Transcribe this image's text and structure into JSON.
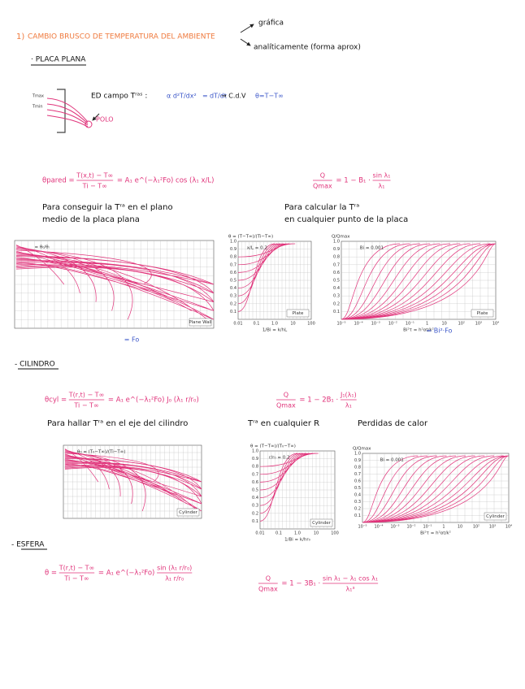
{
  "header": {
    "number": "1)",
    "title": "CAMBIO BRUSCO DE TEMPERATURA DEL AMBIENTE",
    "options": [
      "gráfica",
      "analíticamente (forma aprox)"
    ]
  },
  "plate": {
    "heading": "· PLACA PLANA",
    "diagram": {
      "hot": "Tmax",
      "cold": "Tmin",
      "pole": "POLO"
    },
    "equation": {
      "label": "ED campo Tʳᵃˢ :",
      "lhs": "α d²T/dx²",
      "eq": "=",
      "rhs": "dT/dt",
      "arrow": "→ C.d.V",
      "substitution": "θ=T−T∞"
    },
    "center_formula": [
      "θpared = ",
      {
        "num": "T(x,t) − T∞",
        "den": "Ti − T∞"
      },
      " = A₁ e^(−λ₁²Fo) cos (λ₁ x/L)"
    ],
    "heat_formula": [
      {
        "num": "Q",
        "den": "Qmax"
      },
      " = 1 − B₁ · ",
      {
        "num": "sin λ₁",
        "den": "λ₁"
      }
    ],
    "note_left": [
      "Para conseguir la Tʳᵃ en el plano",
      "medio de la placa plana"
    ],
    "note_right": [
      "Para calcular la Tʳᵃ",
      "en cualquier punto de la placa"
    ],
    "charts": [
      {
        "caption": "Plane Wall",
        "annotation": "= θ₀/θᵢ",
        "xnote": "= Fo"
      },
      {
        "ylabel": "θ = (T−T∞)/(Ti−T∞)",
        "annotation": "x/L = 0.2",
        "caption": "Plate",
        "xlabel": "1/Bi = k/hL",
        "xticks": [
          "0.01",
          "0.1",
          "1.0",
          "10",
          "100"
        ],
        "yticks": [
          "0.1",
          "0.2",
          "0.3",
          "0.4",
          "0.5",
          "0.6",
          "0.7",
          "0.8",
          "0.9",
          "1.0"
        ]
      },
      {
        "ylabel": "Q/Qmax",
        "annotation": "Bi = 0.001",
        "caption": "Plate",
        "xlabel": "Bi²τ = h²αt/k²",
        "xnote": "= Bi²·Fo",
        "xticks": [
          "10⁻⁵",
          "10⁻⁴",
          "10⁻³",
          "10⁻²",
          "10⁻¹",
          "1",
          "10",
          "10²",
          "10³",
          "10⁴"
        ],
        "yticks": [
          "0.1",
          "0.2",
          "0.3",
          "0.4",
          "0.5",
          "0.6",
          "0.7",
          "0.8",
          "0.9",
          "1.0"
        ]
      }
    ]
  },
  "cylinder": {
    "heading": "- CILINDRO",
    "center_formula": [
      "θcyl = ",
      {
        "num": "T(r,t) − T∞",
        "den": "Ti − T∞"
      },
      " = A₁ e^(−λ₁²Fo) J₀ (λ₁ r/r₀)"
    ],
    "heat_formula": [
      {
        "num": "Q",
        "den": "Qmax"
      },
      " = 1 − 2B₁ · ",
      {
        "num": "J₁(λ₁)",
        "den": "λ₁"
      }
    ],
    "notes": [
      "Para hallar Tʳᵃ en el eje del cilindro",
      "Tʳᵃ en cualquier R",
      "Perdidas de calor"
    ],
    "charts": [
      {
        "caption": "Cylinder",
        "annotation": "θ₀ = (T₀−T∞)/(Ti−T∞)"
      },
      {
        "ylabel": "θ = (T−T∞)/(T₀−T∞)",
        "annotation": "r/r₀ = 0.2",
        "caption": "Cylinder",
        "xlabel": "1/Bi = k/hr₀",
        "xticks": [
          "0.01",
          "0.1",
          "1.0",
          "10",
          "100"
        ],
        "yticks": [
          "0.1",
          "0.2",
          "0.3",
          "0.4",
          "0.5",
          "0.6",
          "0.7",
          "0.8",
          "0.9",
          "1.0"
        ]
      },
      {
        "ylabel": "Q/Qmax",
        "annotation": "Bi = 0.001",
        "caption": "Cylinder",
        "xlabel": "Bi²τ = h²αt/k²",
        "xticks": [
          "10⁻⁵",
          "10⁻⁴",
          "10⁻³",
          "10⁻²",
          "10⁻¹",
          "1",
          "10",
          "10²",
          "10³",
          "10⁴"
        ],
        "yticks": [
          "0.1",
          "0.2",
          "0.3",
          "0.4",
          "0.5",
          "0.6",
          "0.7",
          "0.8",
          "0.9",
          "1.0"
        ]
      }
    ]
  },
  "sphere": {
    "heading": "- ESFERA",
    "center_formula": [
      "θ = ",
      {
        "num": "T(r,t) − T∞",
        "den": "Ti − T∞"
      },
      " = A₁ e^(−λ₁²Fo) ",
      {
        "num": "sin (λ₁ r/r₀)",
        "den": "λ₁ r/r₀"
      }
    ],
    "heat_formula": [
      {
        "num": "Q",
        "den": "Qmax"
      },
      " = 1 − 3B₁ · ",
      {
        "num": "sin λ₁ − λ₁ cos λ₁",
        "den": "λ₁³"
      }
    ]
  }
}
